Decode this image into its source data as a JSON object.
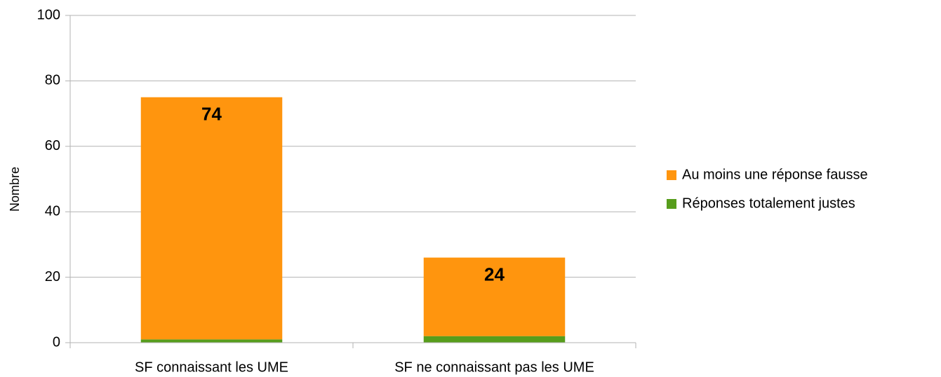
{
  "chart_data": {
    "type": "stacked_bar",
    "y_label": "Nombre",
    "categories": [
      "SF connaissant les UME",
      "SF ne connaissant pas les UME"
    ],
    "series": [
      {
        "name": "Au moins une réponse fausse",
        "color": "#ff950e",
        "values": [
          74,
          24
        ]
      },
      {
        "name": "Réponses totalement justes",
        "color": "#579d1c",
        "values": [
          1,
          2
        ]
      }
    ],
    "ylim": [
      0,
      100
    ],
    "yticks": [
      0,
      20,
      40,
      60,
      80,
      100
    ],
    "grid": true,
    "legend": "right"
  }
}
